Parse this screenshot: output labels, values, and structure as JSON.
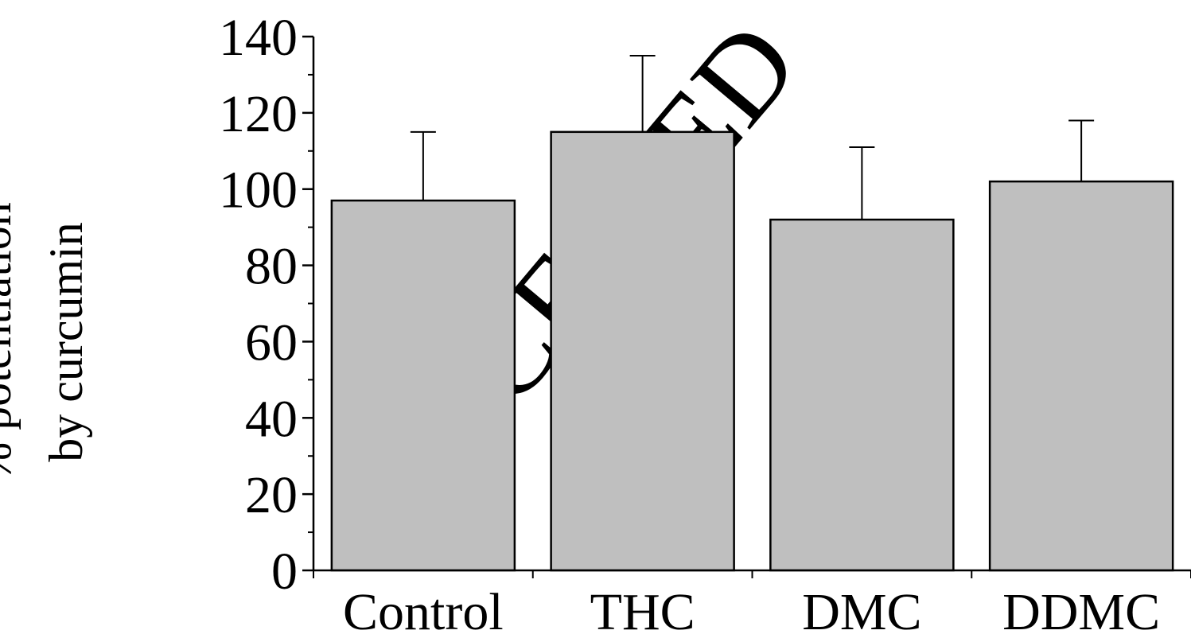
{
  "watermark": "ACCEPTED",
  "chart_data": {
    "type": "bar",
    "title": "",
    "xlabel": "",
    "ylabel_lines": [
      "% potentiation",
      "by curcumin"
    ],
    "categories": [
      "Control",
      "THC",
      "DMC",
      "DDMC"
    ],
    "series": [
      {
        "values": [
          97,
          115,
          92,
          102
        ],
        "errors": [
          18,
          20,
          19,
          16
        ],
        "color": "#bfbfbf"
      }
    ],
    "ylim": [
      0,
      140
    ],
    "yticks": [
      0,
      20,
      40,
      60,
      80,
      100,
      120,
      140
    ],
    "minor_yticks": [
      10,
      30,
      50,
      70,
      90,
      110,
      130
    ],
    "grid": false,
    "legend": "none"
  }
}
